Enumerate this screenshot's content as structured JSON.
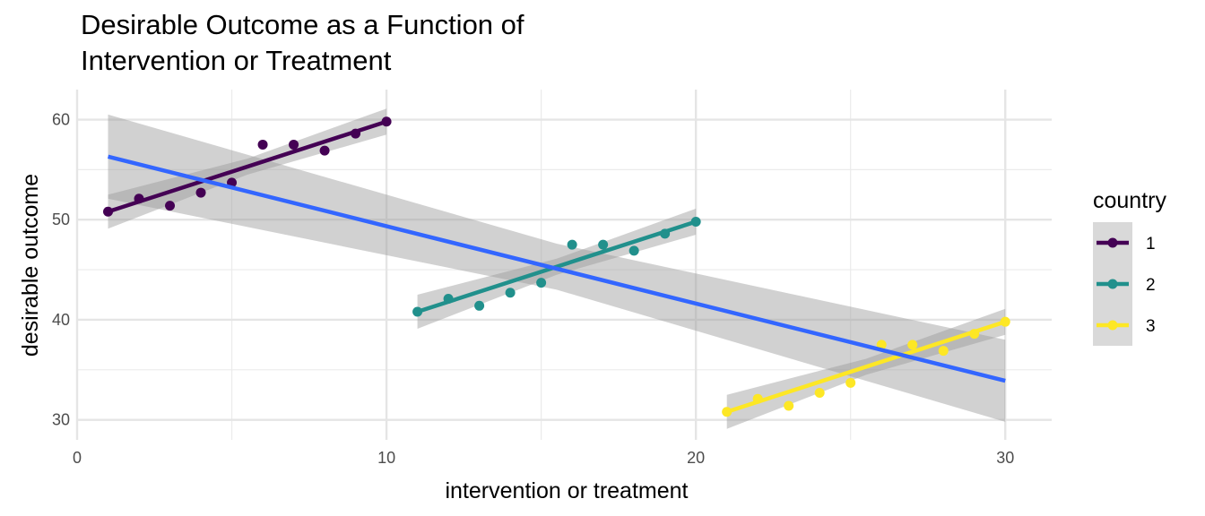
{
  "chart_data": {
    "type": "scatter",
    "title_lines": [
      "Desirable Outcome as a Function of",
      "Intervention or Treatment"
    ],
    "xlabel": "intervention or treatment",
    "ylabel": "desirable outcome",
    "xlim": [
      0,
      31.5
    ],
    "ylim": [
      28,
      63
    ],
    "x_ticks": [
      0,
      10,
      20,
      30
    ],
    "y_ticks": [
      30,
      40,
      50,
      60
    ],
    "grid": true,
    "legend": {
      "title": "country",
      "position": "right",
      "entries": [
        "1",
        "2",
        "3"
      ]
    },
    "series": [
      {
        "name": "1",
        "color": "#440154",
        "x": [
          1,
          2,
          3,
          4,
          5,
          6,
          7,
          8,
          9,
          10
        ],
        "y": [
          50.8,
          52.1,
          51.4,
          52.7,
          53.7,
          57.5,
          57.5,
          56.9,
          58.6,
          59.8
        ],
        "fit": {
          "x": [
            1,
            10
          ],
          "y": [
            50.8,
            59.8
          ],
          "ci_start": [
            49.1,
            52.5
          ],
          "ci_mid": [
            54.5,
            56.1
          ],
          "ci_end": [
            58.5,
            61.1
          ]
        }
      },
      {
        "name": "2",
        "color": "#21908C",
        "x": [
          11,
          12,
          13,
          14,
          15,
          16,
          17,
          18,
          19,
          20
        ],
        "y": [
          40.8,
          42.1,
          41.4,
          42.7,
          43.7,
          47.5,
          47.5,
          46.9,
          48.6,
          49.8
        ],
        "fit": {
          "x": [
            11,
            20
          ],
          "y": [
            40.8,
            49.8
          ],
          "ci_start": [
            39.1,
            42.5
          ],
          "ci_mid": [
            44.5,
            46.1
          ],
          "ci_end": [
            48.5,
            51.1
          ]
        }
      },
      {
        "name": "3",
        "color": "#FDE725",
        "x": [
          21,
          22,
          23,
          24,
          25,
          26,
          27,
          28,
          29,
          30
        ],
        "y": [
          30.8,
          32.1,
          31.4,
          32.7,
          33.7,
          37.5,
          37.5,
          36.9,
          38.6,
          39.8
        ],
        "fit": {
          "x": [
            21,
            30
          ],
          "y": [
            30.8,
            39.8
          ],
          "ci_start": [
            29.1,
            32.5
          ],
          "ci_mid": [
            34.5,
            36.1
          ],
          "ci_end": [
            38.5,
            41.1
          ]
        }
      }
    ],
    "overall_fit": {
      "color": "#3366FF",
      "x": [
        1,
        30
      ],
      "y": [
        56.3,
        33.9
      ],
      "ci_start": [
        52.1,
        60.5
      ],
      "ci_mid": [
        43.0,
        47.6
      ],
      "ci_end": [
        29.8,
        38.0
      ]
    }
  }
}
